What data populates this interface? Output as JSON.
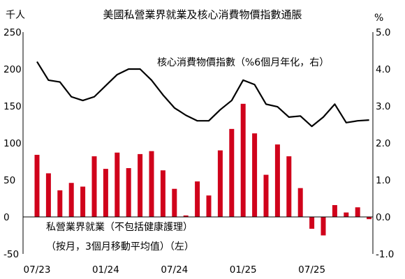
{
  "chart_data": {
    "type": "bar",
    "title": "美國私營業界就業及核心消費物價指數通脹",
    "left_axis": {
      "unit": "千人",
      "ylim": [
        -50,
        250
      ],
      "ticks": [
        250,
        200,
        150,
        100,
        50,
        0,
        -50
      ]
    },
    "right_axis": {
      "unit": "%",
      "ylim": [
        -1.0,
        5.0
      ],
      "ticks": [
        "5.0",
        "4.0",
        "3.0",
        "2.0",
        "1.0",
        "0.0",
        "-1.0"
      ]
    },
    "x_tick_labels": [
      "07/23",
      "01/24",
      "07/24",
      "01/25",
      "07/25"
    ],
    "months": [
      "07/23",
      "08/23",
      "09/23",
      "10/23",
      "11/23",
      "12/23",
      "01/24",
      "02/24",
      "03/24",
      "04/24",
      "05/24",
      "06/24",
      "07/24",
      "08/24",
      "09/24",
      "10/24",
      "11/24",
      "12/24",
      "01/25",
      "02/25",
      "03/25",
      "04/25",
      "05/25",
      "06/25",
      "07/25",
      "08/25",
      "09/25",
      "10/25",
      "11/25",
      "12/25"
    ],
    "grid": false,
    "series": [
      {
        "name": "私營業界就業（不包括健康護理）（按月，3個月移動平均值）（左）",
        "name_line1": "私營業界就業（不包括健康護理）",
        "name_line2": "（按月，3個月移動平均值）（左）",
        "type": "bar",
        "axis": "left",
        "color": "#d0021b",
        "values": [
          84,
          59,
          36,
          46,
          41,
          82,
          65,
          87,
          66,
          85,
          89,
          63,
          38,
          2,
          48,
          29,
          90,
          119,
          153,
          113,
          57,
          98,
          82,
          39,
          -16,
          -25,
          16,
          6,
          13,
          -3
        ]
      },
      {
        "name": "核心消費物價指數（%6個月年化，右）",
        "type": "line",
        "axis": "right",
        "color": "#000000",
        "values": [
          4.2,
          3.7,
          3.65,
          3.25,
          3.15,
          3.25,
          3.55,
          3.85,
          4.0,
          4.0,
          3.7,
          3.3,
          2.95,
          2.75,
          2.6,
          2.6,
          2.9,
          3.15,
          3.7,
          3.58,
          3.05,
          2.98,
          2.7,
          2.73,
          2.45,
          2.7,
          3.05,
          2.55,
          2.6,
          2.62
        ]
      }
    ]
  }
}
